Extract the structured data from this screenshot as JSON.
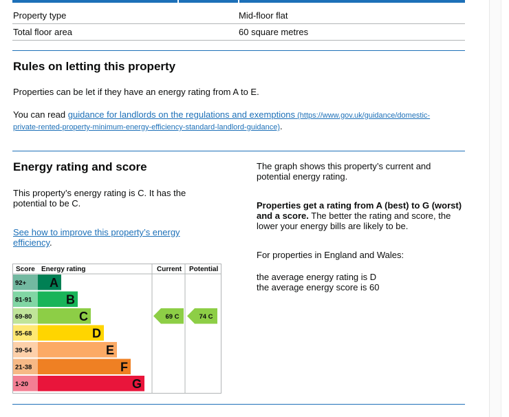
{
  "property": {
    "rows": [
      {
        "label": "Property type",
        "value": "Mid-floor flat"
      },
      {
        "label": "Total floor area",
        "value": "60 square metres"
      }
    ]
  },
  "letting": {
    "heading": "Rules on letting this property",
    "para1": "Properties can be let if they have an energy rating from A to E.",
    "para2_prefix": "You can read ",
    "para2_link": "guidance for landlords on the regulations and exemptions",
    "para2_url_a": " (https://www.gov.uk/guidance/domestic-",
    "para2_url_b": "private-rented-property-minimum-energy-efficiency-standard-landlord-guidance)",
    "para2_suffix": "."
  },
  "energy": {
    "heading": "Energy rating and score",
    "para1_a": "This property’s energy rating is C. It has the",
    "para1_b": "potential to be C.",
    "link_a": "See how to improve this property’s energy",
    "link_b": "efficiency",
    "link_suffix": "."
  },
  "aside": {
    "para1_a": "The graph shows this property’s current and",
    "para1_b": "potential energy rating.",
    "para2_bold_a": "Properties get a rating from A (best) to G (worst)",
    "para2_bold_b": "and a score.",
    "para2_rest_b": " The better the rating and score, the",
    "para2_rest_c": "lower your energy bills are likely to be.",
    "para3": "For properties in England and Wales:",
    "para4_a": "the average energy rating is D",
    "para4_b": "the average energy score is 60"
  },
  "chart_data": {
    "type": "table",
    "headers": [
      "Score",
      "Energy rating",
      "Current",
      "Potential"
    ],
    "bands": [
      {
        "range": "92+",
        "letter": "A",
        "color": "#008054"
      },
      {
        "range": "81-91",
        "letter": "B",
        "color": "#19b459"
      },
      {
        "range": "69-80",
        "letter": "C",
        "color": "#8dce46"
      },
      {
        "range": "55-68",
        "letter": "D",
        "color": "#ffd500"
      },
      {
        "range": "39-54",
        "letter": "E",
        "color": "#fcaa65"
      },
      {
        "range": "21-38",
        "letter": "F",
        "color": "#ef8023"
      },
      {
        "range": "1-20",
        "letter": "G",
        "color": "#e9153b"
      }
    ],
    "current": {
      "score": 69,
      "band": "C",
      "label": "69  C"
    },
    "potential": {
      "score": 74,
      "band": "C",
      "label": "74  C"
    }
  }
}
